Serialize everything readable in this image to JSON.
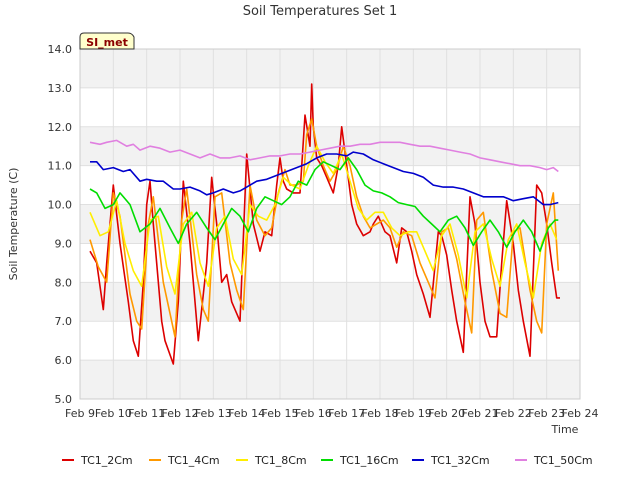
{
  "chart_data": {
    "type": "line",
    "title": "Soil Temperatures Set 1",
    "xlabel": "Time",
    "ylabel": "Soil Temperature (C)",
    "badge": "SI_met",
    "x_unit": "day",
    "xlim": [
      9,
      24
    ],
    "ylim": [
      5.0,
      14.0
    ],
    "yticks": [
      5.0,
      6.0,
      7.0,
      8.0,
      9.0,
      10.0,
      11.0,
      12.0,
      13.0,
      14.0
    ],
    "xticks": [
      {
        "value": 9,
        "label": "Feb 9"
      },
      {
        "value": 10,
        "label": "Feb 10"
      },
      {
        "value": 11,
        "label": "Feb 11"
      },
      {
        "value": 12,
        "label": "Feb 12"
      },
      {
        "value": 13,
        "label": "Feb 13"
      },
      {
        "value": 14,
        "label": "Feb 14"
      },
      {
        "value": 15,
        "label": "Feb 15"
      },
      {
        "value": 16,
        "label": "Feb 16"
      },
      {
        "value": 17,
        "label": "Feb 17"
      },
      {
        "value": 18,
        "label": "Feb 18"
      },
      {
        "value": 19,
        "label": "Feb 19"
      },
      {
        "value": 20,
        "label": "Feb 20"
      },
      {
        "value": 21,
        "label": "Feb 21"
      },
      {
        "value": 22,
        "label": "Feb 22"
      },
      {
        "value": 23,
        "label": "Feb 23"
      },
      {
        "value": 24,
        "label": "Feb 24"
      }
    ],
    "grid": true,
    "legend_position": "bottom",
    "series": [
      {
        "name": "TC1_2Cm",
        "color": "#dd0000",
        "x": [
          9.3,
          9.5,
          9.7,
          9.8,
          10.0,
          10.2,
          10.45,
          10.6,
          10.75,
          10.9,
          11.0,
          11.1,
          11.2,
          11.45,
          11.55,
          11.8,
          11.95,
          12.1,
          12.3,
          12.45,
          12.55,
          12.8,
          12.95,
          13.1,
          13.25,
          13.4,
          13.55,
          13.8,
          14.0,
          14.2,
          14.4,
          14.55,
          14.75,
          14.9,
          15.0,
          15.1,
          15.2,
          15.4,
          15.6,
          15.75,
          15.9,
          15.95,
          16.0,
          16.1,
          16.25,
          16.4,
          16.6,
          16.75,
          16.85,
          17.0,
          17.15,
          17.3,
          17.5,
          17.7,
          17.8,
          17.95,
          18.15,
          18.3,
          18.5,
          18.65,
          18.8,
          18.95,
          19.1,
          19.3,
          19.5,
          19.75,
          19.85,
          20.0,
          20.15,
          20.3,
          20.5,
          20.7,
          20.85,
          21.0,
          21.15,
          21.3,
          21.5,
          21.65,
          21.8,
          22.0,
          22.15,
          22.3,
          22.5,
          22.7,
          22.85,
          23.0,
          23.15,
          23.3,
          23.4
        ],
        "y": [
          8.8,
          8.5,
          7.3,
          8.5,
          10.5,
          9.0,
          7.5,
          6.5,
          6.1,
          8.0,
          10.0,
          10.6,
          9.5,
          7.0,
          6.5,
          5.9,
          7.5,
          10.6,
          9.0,
          7.5,
          6.5,
          8.5,
          10.7,
          9.5,
          8.0,
          8.2,
          7.5,
          7.0,
          11.3,
          9.5,
          8.8,
          9.3,
          9.2,
          10.5,
          11.2,
          10.6,
          10.4,
          10.3,
          10.3,
          12.3,
          11.5,
          13.1,
          12.0,
          11.2,
          11.0,
          10.7,
          10.3,
          11.0,
          12.0,
          11.0,
          10.0,
          9.5,
          9.2,
          9.3,
          9.5,
          9.7,
          9.3,
          9.2,
          8.5,
          9.4,
          9.3,
          8.8,
          8.2,
          7.7,
          7.1,
          9.3,
          9.2,
          8.7,
          7.8,
          7.0,
          6.2,
          10.2,
          9.5,
          8.0,
          7.0,
          6.6,
          6.6,
          8.5,
          10.1,
          9.0,
          7.8,
          7.0,
          6.1,
          10.5,
          10.3,
          9.5,
          8.5,
          7.6,
          7.6
        ]
      },
      {
        "name": "TC1_4Cm",
        "color": "#ff9900",
        "x": [
          9.3,
          9.55,
          9.8,
          10.0,
          10.2,
          10.5,
          10.7,
          10.85,
          11.05,
          11.2,
          11.5,
          11.7,
          11.85,
          12.05,
          12.2,
          12.5,
          12.7,
          12.85,
          13.05,
          13.25,
          13.5,
          13.7,
          13.9,
          14.1,
          14.3,
          14.55,
          14.75,
          14.95,
          15.15,
          15.3,
          15.5,
          15.7,
          15.8,
          15.95,
          16.1,
          16.3,
          16.5,
          16.7,
          16.9,
          17.1,
          17.3,
          17.5,
          17.7,
          17.9,
          18.1,
          18.3,
          18.5,
          18.7,
          18.95,
          19.2,
          19.45,
          19.65,
          19.85,
          20.05,
          20.3,
          20.55,
          20.75,
          20.9,
          21.1,
          21.35,
          21.6,
          21.8,
          22.0,
          22.2,
          22.5,
          22.7,
          22.85,
          23.0,
          23.2,
          23.35
        ],
        "y": [
          9.1,
          8.4,
          8.0,
          10.3,
          9.7,
          7.7,
          7.0,
          6.8,
          9.5,
          10.2,
          8.0,
          7.2,
          6.6,
          9.6,
          10.4,
          8.2,
          7.3,
          7.0,
          10.2,
          10.3,
          8.5,
          7.8,
          7.3,
          10.5,
          9.6,
          9.2,
          9.4,
          10.3,
          10.9,
          10.5,
          10.5,
          10.6,
          11.8,
          12.2,
          11.5,
          11.0,
          10.6,
          10.9,
          11.5,
          11.0,
          10.2,
          9.7,
          9.4,
          9.5,
          9.6,
          9.4,
          8.9,
          9.3,
          9.2,
          8.5,
          8.0,
          7.6,
          9.3,
          9.4,
          8.6,
          7.5,
          6.7,
          9.6,
          9.8,
          8.3,
          7.2,
          7.1,
          9.3,
          9.4,
          7.8,
          7.0,
          6.7,
          9.5,
          10.3,
          8.3
        ]
      },
      {
        "name": "TC1_8Cm",
        "color": "#ffee00",
        "x": [
          9.3,
          9.6,
          9.85,
          10.1,
          10.35,
          10.6,
          10.85,
          11.1,
          11.35,
          11.6,
          11.85,
          12.1,
          12.35,
          12.6,
          12.85,
          13.1,
          13.35,
          13.6,
          13.85,
          14.1,
          14.35,
          14.6,
          14.85,
          15.1,
          15.35,
          15.6,
          15.85,
          16.1,
          16.35,
          16.6,
          16.85,
          17.1,
          17.35,
          17.6,
          17.85,
          18.1,
          18.35,
          18.6,
          18.85,
          19.1,
          19.35,
          19.6,
          19.85,
          20.1,
          20.35,
          20.6,
          20.85,
          21.1,
          21.35,
          21.6,
          21.85,
          22.1,
          22.35,
          22.6,
          22.85,
          23.1,
          23.3
        ],
        "y": [
          9.8,
          9.2,
          9.3,
          10.1,
          9.0,
          8.3,
          7.9,
          9.6,
          9.7,
          8.4,
          7.7,
          9.5,
          9.8,
          8.5,
          7.9,
          9.4,
          9.7,
          8.6,
          8.2,
          10.0,
          9.7,
          9.6,
          10.0,
          10.7,
          10.5,
          10.4,
          11.0,
          11.5,
          11.1,
          10.8,
          11.3,
          10.6,
          9.9,
          9.6,
          9.8,
          9.8,
          9.4,
          9.2,
          9.3,
          9.3,
          8.8,
          8.3,
          9.2,
          9.5,
          8.7,
          7.6,
          9.3,
          9.5,
          8.6,
          7.9,
          9.1,
          9.5,
          8.5,
          7.6,
          9.0,
          9.5,
          9.1
        ]
      },
      {
        "name": "TC1_16Cm",
        "color": "#00dd00",
        "x": [
          9.3,
          9.5,
          9.75,
          10.0,
          10.2,
          10.5,
          10.8,
          11.1,
          11.4,
          11.7,
          11.95,
          12.2,
          12.5,
          12.8,
          13.05,
          13.3,
          13.55,
          13.8,
          14.05,
          14.3,
          14.55,
          14.8,
          15.05,
          15.3,
          15.55,
          15.8,
          16.05,
          16.3,
          16.55,
          16.8,
          17.05,
          17.3,
          17.55,
          17.8,
          18.05,
          18.3,
          18.55,
          18.8,
          19.05,
          19.3,
          19.55,
          19.8,
          20.05,
          20.3,
          20.55,
          20.8,
          21.05,
          21.3,
          21.55,
          21.8,
          22.05,
          22.3,
          22.55,
          22.8,
          23.05,
          23.25,
          23.35
        ],
        "y": [
          10.4,
          10.3,
          9.9,
          10.0,
          10.3,
          10.0,
          9.3,
          9.5,
          9.9,
          9.4,
          9.0,
          9.5,
          9.8,
          9.4,
          9.1,
          9.5,
          9.9,
          9.7,
          9.3,
          9.9,
          10.2,
          10.1,
          10.0,
          10.2,
          10.6,
          10.5,
          10.9,
          11.1,
          11.0,
          10.9,
          11.2,
          10.9,
          10.5,
          10.35,
          10.3,
          10.2,
          10.05,
          10.0,
          9.95,
          9.7,
          9.5,
          9.3,
          9.6,
          9.7,
          9.4,
          8.95,
          9.3,
          9.6,
          9.3,
          8.9,
          9.3,
          9.6,
          9.3,
          8.8,
          9.4,
          9.6,
          9.6
        ]
      },
      {
        "name": "TC1_32Cm",
        "color": "#0000cc",
        "x": [
          9.3,
          9.5,
          9.7,
          10.0,
          10.3,
          10.5,
          10.8,
          11.0,
          11.3,
          11.5,
          11.8,
          12.0,
          12.3,
          12.6,
          12.8,
          13.0,
          13.3,
          13.6,
          13.8,
          14.0,
          14.3,
          14.6,
          14.9,
          15.2,
          15.5,
          15.8,
          16.1,
          16.4,
          16.7,
          17.0,
          17.2,
          17.5,
          17.8,
          18.1,
          18.4,
          18.7,
          19.0,
          19.3,
          19.6,
          19.9,
          20.2,
          20.5,
          20.8,
          21.1,
          21.4,
          21.7,
          22.0,
          22.3,
          22.6,
          22.9,
          23.1,
          23.35
        ],
        "y": [
          11.1,
          11.1,
          10.9,
          10.95,
          10.85,
          10.9,
          10.6,
          10.65,
          10.6,
          10.6,
          10.4,
          10.4,
          10.45,
          10.35,
          10.25,
          10.3,
          10.4,
          10.3,
          10.35,
          10.45,
          10.6,
          10.65,
          10.75,
          10.85,
          10.95,
          11.05,
          11.2,
          11.3,
          11.3,
          11.25,
          11.35,
          11.3,
          11.15,
          11.05,
          10.95,
          10.85,
          10.8,
          10.7,
          10.5,
          10.45,
          10.45,
          10.4,
          10.3,
          10.2,
          10.2,
          10.2,
          10.1,
          10.15,
          10.2,
          10.0,
          10.0,
          10.05
        ]
      },
      {
        "name": "TC1_50Cm",
        "color": "#e080e0",
        "x": [
          9.3,
          9.6,
          9.8,
          10.1,
          10.4,
          10.6,
          10.8,
          11.1,
          11.4,
          11.7,
          12.0,
          12.3,
          12.6,
          12.9,
          13.2,
          13.5,
          13.8,
          14.1,
          14.4,
          14.7,
          15.0,
          15.3,
          15.6,
          15.9,
          16.2,
          16.5,
          16.8,
          17.1,
          17.4,
          17.7,
          18.0,
          18.3,
          18.6,
          18.9,
          19.2,
          19.5,
          19.8,
          20.1,
          20.4,
          20.7,
          21.0,
          21.3,
          21.6,
          21.9,
          22.2,
          22.5,
          22.8,
          23.0,
          23.2,
          23.35
        ],
        "y": [
          11.6,
          11.55,
          11.6,
          11.65,
          11.5,
          11.55,
          11.4,
          11.5,
          11.45,
          11.35,
          11.4,
          11.3,
          11.2,
          11.3,
          11.2,
          11.2,
          11.25,
          11.15,
          11.2,
          11.25,
          11.25,
          11.3,
          11.3,
          11.35,
          11.4,
          11.45,
          11.5,
          11.5,
          11.55,
          11.55,
          11.6,
          11.6,
          11.6,
          11.55,
          11.5,
          11.5,
          11.45,
          11.4,
          11.35,
          11.3,
          11.2,
          11.15,
          11.1,
          11.05,
          11.0,
          11.0,
          10.95,
          10.9,
          10.95,
          10.85
        ]
      }
    ]
  }
}
